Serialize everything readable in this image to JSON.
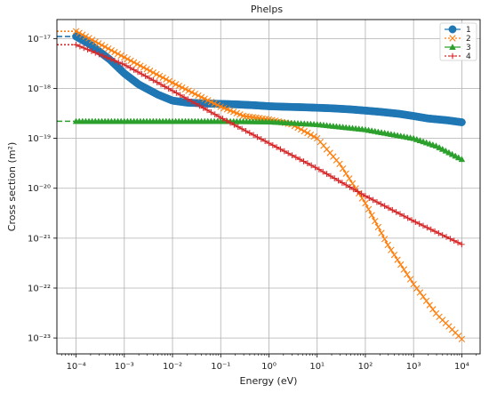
{
  "chart_data": {
    "type": "line",
    "title": "Phelps",
    "xlabel": "Energy (eV)",
    "ylabel": "Cross section (m²)",
    "xscale": "log",
    "yscale": "log",
    "xlim": [
      4e-05,
      24000.0
    ],
    "ylim": [
      4.8e-24,
      2.4e-17
    ],
    "grid": true,
    "legend_position": "top-right",
    "x_ticks": [
      {
        "label": "10⁻⁴",
        "value": 0.0001
      },
      {
        "label": "10⁻³",
        "value": 0.001
      },
      {
        "label": "10⁻²",
        "value": 0.01
      },
      {
        "label": "10⁻¹",
        "value": 0.1
      },
      {
        "label": "10⁰",
        "value": 1
      },
      {
        "label": "10¹",
        "value": 10
      },
      {
        "label": "10²",
        "value": 100
      },
      {
        "label": "10³",
        "value": 1000
      },
      {
        "label": "10⁴",
        "value": 10000
      }
    ],
    "y_ticks": [
      {
        "label": "10⁻¹⁷",
        "value": 1e-17
      },
      {
        "label": "10⁻¹⁸",
        "value": 1e-18
      },
      {
        "label": "10⁻¹⁹",
        "value": 1e-19
      },
      {
        "label": "10⁻²⁰",
        "value": 1e-20
      },
      {
        "label": "10⁻²¹",
        "value": 1e-21
      },
      {
        "label": "10⁻²²",
        "value": 1e-22
      },
      {
        "label": "10⁻²³",
        "value": 1e-23
      }
    ],
    "series": [
      {
        "name": "1",
        "color": "#1f77b4",
        "marker": "circle",
        "extrapolated_below": 1.1e-17,
        "points": [
          [
            0.0001,
            1.1e-17
          ],
          [
            0.0002,
            7.5e-18
          ],
          [
            0.0005,
            3.8e-18
          ],
          [
            0.001,
            2e-18
          ],
          [
            0.002,
            1.2e-18
          ],
          [
            0.005,
            7.5e-19
          ],
          [
            0.01,
            5.7e-19
          ],
          [
            0.02,
            5.2e-19
          ],
          [
            0.05,
            5e-19
          ],
          [
            0.1,
            4.9e-19
          ],
          [
            0.2,
            4.8e-19
          ],
          [
            0.5,
            4.6e-19
          ],
          [
            1,
            4.4e-19
          ],
          [
            2,
            4.3e-19
          ],
          [
            5,
            4.2e-19
          ],
          [
            10,
            4.1e-19
          ],
          [
            20,
            4e-19
          ],
          [
            50,
            3.8e-19
          ],
          [
            100,
            3.6e-19
          ],
          [
            200,
            3.4e-19
          ],
          [
            500,
            3.1e-19
          ],
          [
            1000,
            2.8e-19
          ],
          [
            2000,
            2.5e-19
          ],
          [
            5000,
            2.3e-19
          ],
          [
            10000,
            2.1e-19
          ]
        ]
      },
      {
        "name": "2",
        "color": "#ff7f0e",
        "marker": "x",
        "extrapolated_below": 1.4e-17,
        "points": [
          [
            0.0001,
            1.4e-17
          ],
          [
            0.001,
            4.2e-18
          ],
          [
            0.01,
            1.3e-18
          ],
          [
            0.1,
            4.3e-19
          ],
          [
            0.3,
            2.8e-19
          ],
          [
            1,
            2.4e-19
          ],
          [
            3,
            1.9e-19
          ],
          [
            10,
            1e-19
          ],
          [
            30,
            3e-20
          ],
          [
            100,
            5e-21
          ],
          [
            300,
            7e-22
          ],
          [
            1000,
            1.2e-22
          ],
          [
            3000,
            3e-23
          ],
          [
            10000,
            9.5e-24
          ]
        ]
      },
      {
        "name": "3",
        "color": "#2ca02c",
        "marker": "triangle",
        "extrapolated_below": 2.2e-19,
        "points": [
          [
            0.0001,
            2.2e-19
          ],
          [
            0.001,
            2.2e-19
          ],
          [
            0.01,
            2.2e-19
          ],
          [
            0.1,
            2.2e-19
          ],
          [
            1,
            2.15e-19
          ],
          [
            10,
            1.9e-19
          ],
          [
            100,
            1.5e-19
          ],
          [
            1000,
            1e-19
          ],
          [
            3000,
            7e-20
          ],
          [
            10000,
            3.8e-20
          ]
        ]
      },
      {
        "name": "4",
        "color": "#d62728",
        "marker": "plus",
        "extrapolated_below": 7.5e-18,
        "points": [
          [
            0.0001,
            7.5e-18
          ],
          [
            0.001,
            3e-18
          ],
          [
            0.01,
            9e-19
          ],
          [
            0.1,
            2.6e-19
          ],
          [
            1,
            8e-20
          ],
          [
            10,
            2.5e-20
          ],
          [
            100,
            7e-21
          ],
          [
            1000,
            2.2e-21
          ],
          [
            10000,
            7.5e-22
          ]
        ]
      }
    ]
  }
}
